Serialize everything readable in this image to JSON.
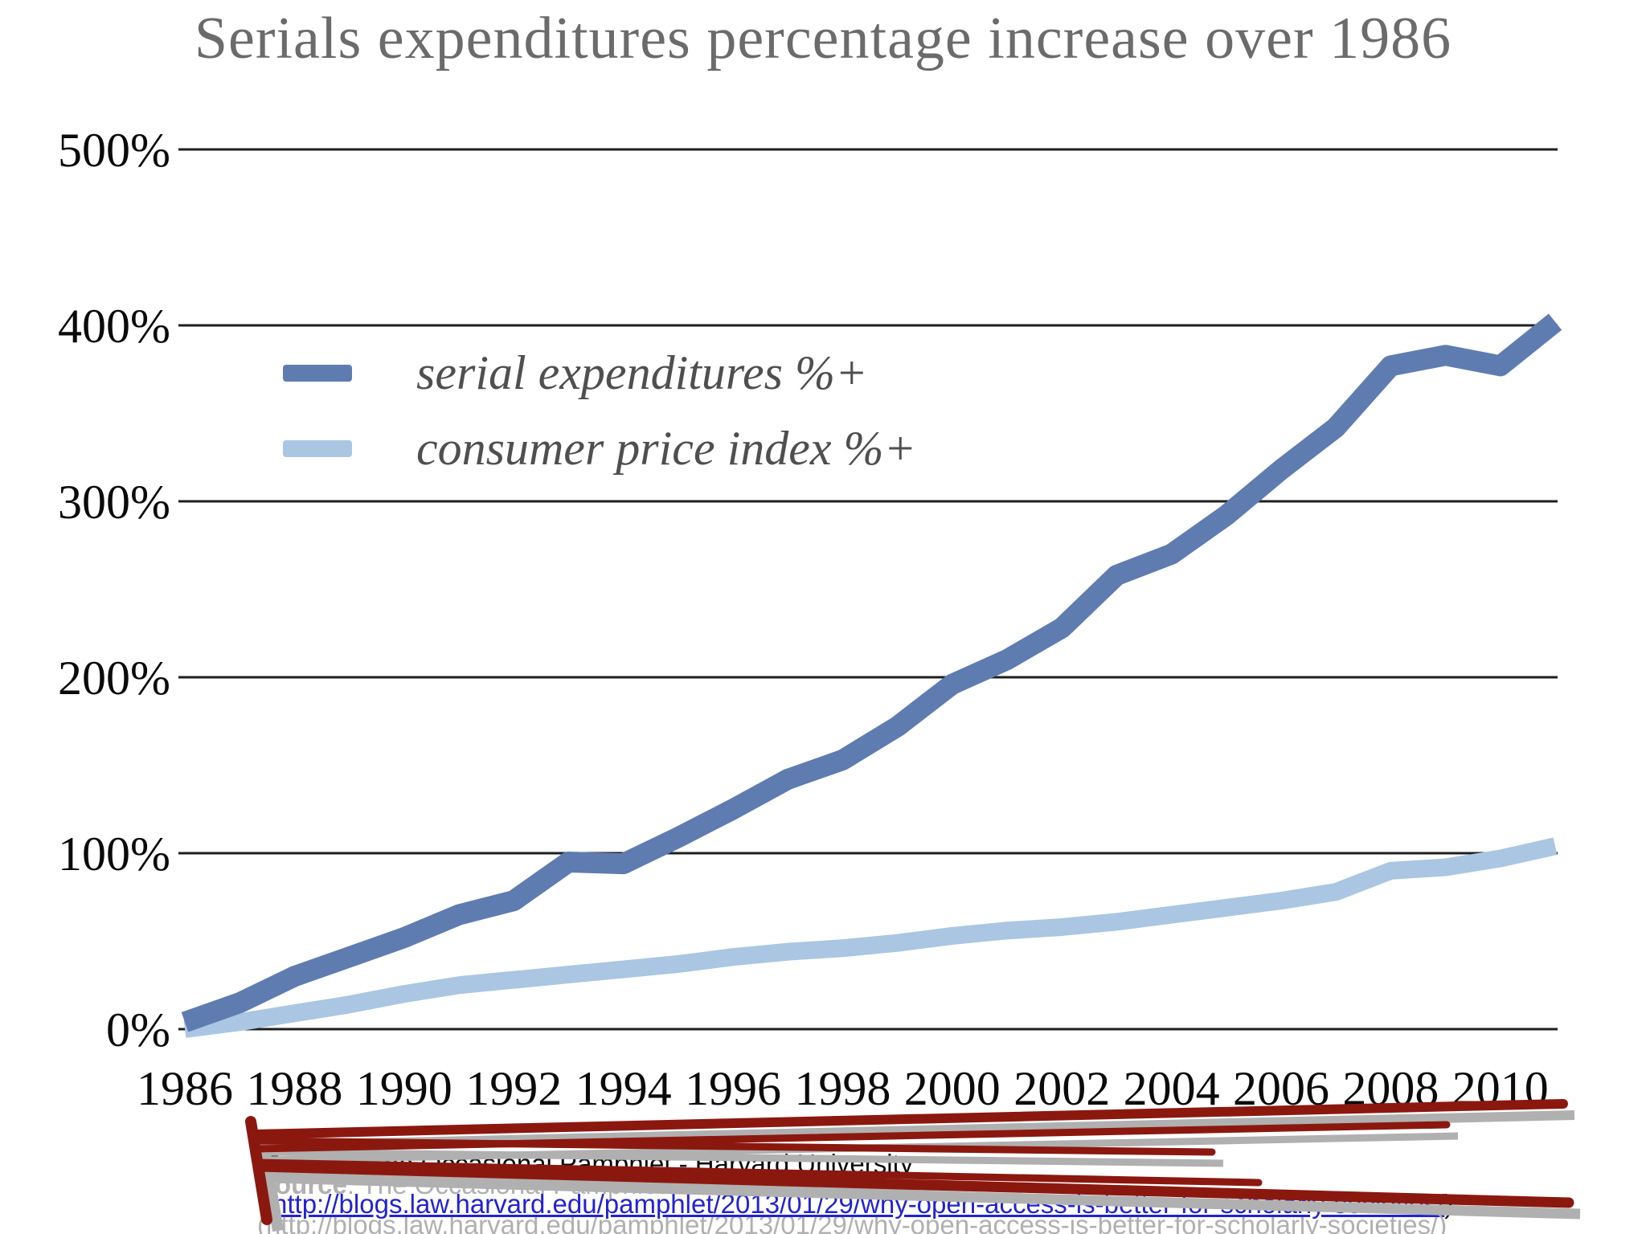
{
  "title": "Serials expenditures percentage increase over 1986",
  "colors": {
    "serial_line": "#5f7cb1",
    "cpi_line": "#aac6e2",
    "gridline": "#1f1f1f",
    "title_text": "#6b6b6b",
    "legend_text": "#4f4f4f",
    "axis_text": "#0a0a0a",
    "link_blue": "#2222d5",
    "scribble_red": "#8b180f",
    "scribble_shadow": "#b0b0b0"
  },
  "chart_data": {
    "type": "line",
    "title": "Serials expenditures percentage increase over 1986",
    "xlabel": "",
    "ylabel": "",
    "grid": "horizontal",
    "legend_position": "upper-left-inside",
    "ylim": [
      0,
      500
    ],
    "ytick_labels": [
      "0%",
      "100%",
      "200%",
      "300%",
      "400%",
      "500%"
    ],
    "xtick_labels": [
      "1986",
      "1988",
      "1990",
      "1992",
      "1994",
      "1996",
      "1998",
      "2000",
      "2002",
      "2004",
      "2006",
      "2008",
      "2010"
    ],
    "x": [
      1986,
      1987,
      1988,
      1989,
      1990,
      1991,
      1992,
      1993,
      1994,
      1995,
      1996,
      1997,
      1998,
      1999,
      2000,
      2001,
      2002,
      2003,
      2004,
      2005,
      2006,
      2007,
      2008,
      2009,
      2010,
      2011
    ],
    "series": [
      {
        "name": "serial expenditures %+",
        "color": "#5f7cb1",
        "values": [
          4,
          15,
          30,
          41,
          52,
          65,
          73,
          95,
          94,
          109,
          125,
          142,
          153,
          172,
          196,
          210,
          228,
          258,
          270,
          292,
          318,
          342,
          377,
          383,
          377,
          402
        ]
      },
      {
        "name": "consumer price index %+",
        "color": "#aac6e2",
        "values": [
          0,
          4,
          9,
          14,
          20,
          25,
          28,
          31,
          34,
          37,
          41,
          44,
          46,
          49,
          53,
          56,
          58,
          61,
          65,
          69,
          73,
          78,
          90,
          92,
          97,
          104
        ]
      }
    ]
  },
  "legend": {
    "items": [
      {
        "label": "serial expenditures %+",
        "color": "#5f7cb1"
      },
      {
        "label": "consumer price index %+",
        "color": "#aac6e2"
      }
    ]
  },
  "source": {
    "bold_label": "Source",
    "rest": ": The Occasional Pamphlet  - Harvard University",
    "paren_open": "(",
    "url": "http://blogs.law.harvard.edu/pamphlet/2013/01/29/why-open-access-is-better-for-scholarly-societies/",
    "paren_close": ")"
  },
  "annotation": {
    "description": "red strikethrough scribble over source citation"
  }
}
